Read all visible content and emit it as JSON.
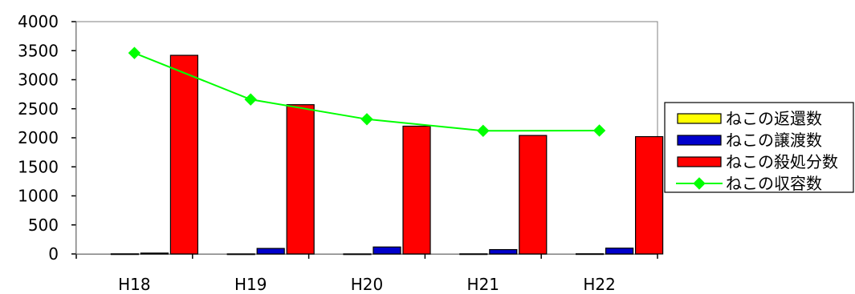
{
  "chart_data": {
    "type": "bar",
    "categories": [
      "H18",
      "H19",
      "H20",
      "H21",
      "H22"
    ],
    "ylim": [
      0,
      4000
    ],
    "yticks": [
      0,
      500,
      1000,
      1500,
      2000,
      2500,
      3000,
      3500,
      4000
    ],
    "grid": false,
    "legend_position": "right",
    "series": [
      {
        "name": "ねこの返還数",
        "type": "bar",
        "color": "#ffff00",
        "values": [
          2,
          1,
          1,
          2,
          3
        ]
      },
      {
        "name": "ねこの譲渡数",
        "type": "bar",
        "color": "#0000cc",
        "values": [
          15,
          95,
          120,
          75,
          100
        ]
      },
      {
        "name": "ねこの殺処分数",
        "type": "bar",
        "color": "#ff0000",
        "values": [
          3420,
          2570,
          2200,
          2040,
          2020
        ]
      },
      {
        "name": "ねこの収容数",
        "type": "line",
        "color": "#00ff00",
        "values": [
          3460,
          2660,
          2320,
          2120,
          2125
        ]
      }
    ]
  }
}
